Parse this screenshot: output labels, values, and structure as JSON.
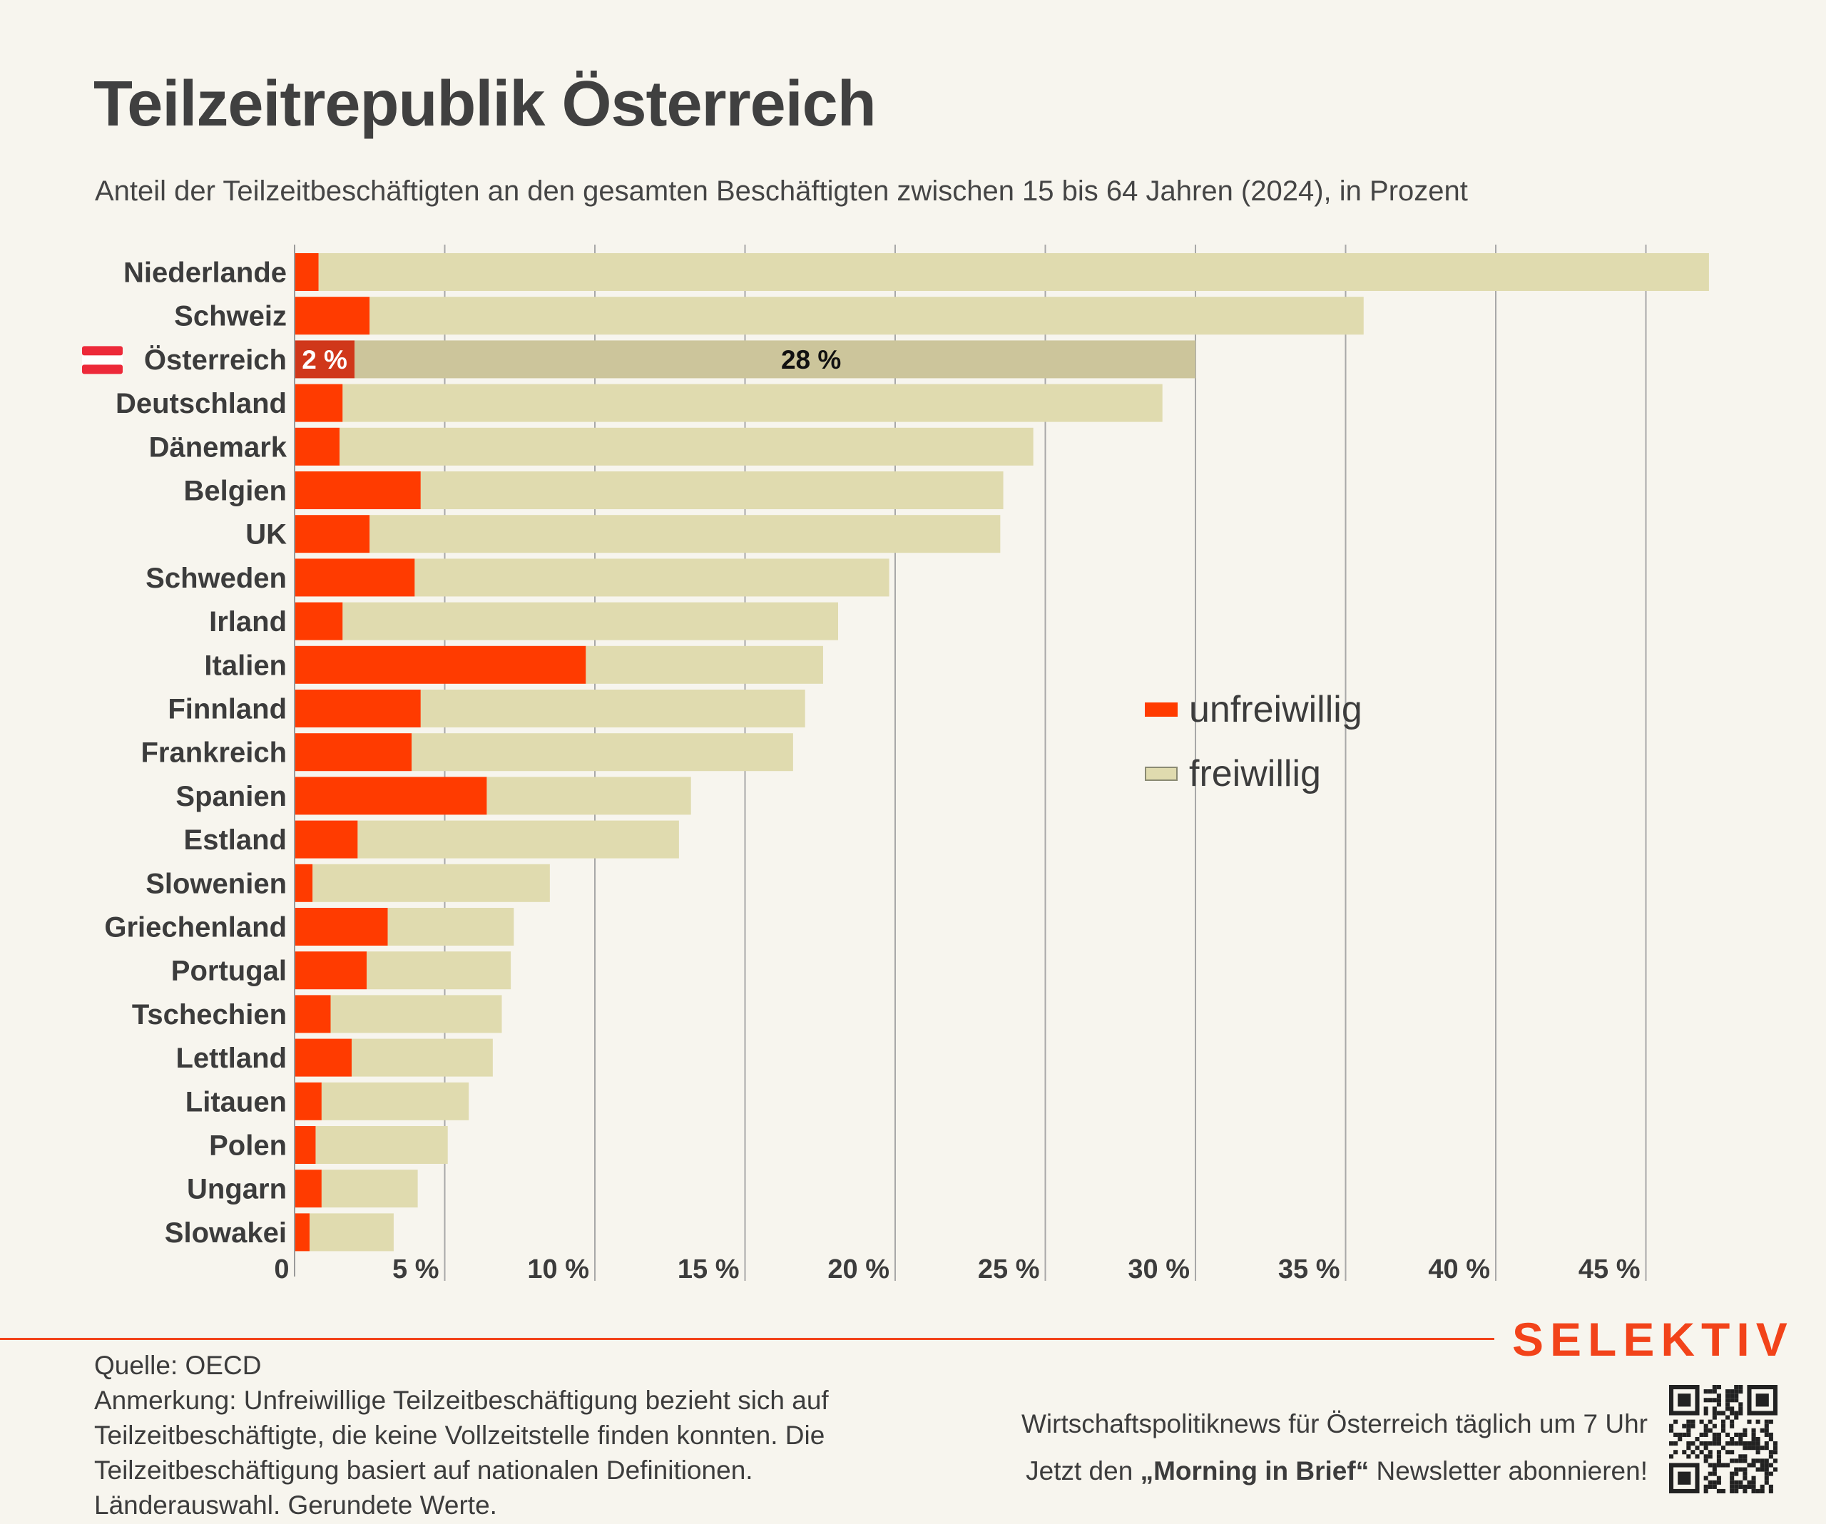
{
  "title": "Teilzeitrepublik Österreich",
  "subtitle": "Anteil der Teilzeitbeschäftigten an den gesamten Beschäftigten zwischen 15 bis 64 Jahren (2024), in Prozent",
  "legend": {
    "involuntary": "unfreiwillig",
    "voluntary": "freiwillig"
  },
  "colors": {
    "involuntary": "#ff3b00",
    "voluntary": "#e0dbaf",
    "highlight_involuntary": "#d0371a",
    "highlight_voluntary": "#ccc59b",
    "background": "#f7f5ee",
    "brand": "#f2431a",
    "grid": "#a8a8a8"
  },
  "chart_data": {
    "type": "bar",
    "orientation": "horizontal",
    "stacked": true,
    "categories": [
      "Niederlande",
      "Schweiz",
      "Österreich",
      "Deutschland",
      "Dänemark",
      "Belgien",
      "UK",
      "Schweden",
      "Irland",
      "Italien",
      "Finnland",
      "Frankreich",
      "Spanien",
      "Estland",
      "Slowenien",
      "Griechenland",
      "Portugal",
      "Tschechien",
      "Lettland",
      "Litauen",
      "Polen",
      "Ungarn",
      "Slowakei"
    ],
    "series": [
      {
        "name": "unfreiwillig",
        "values": [
          0.8,
          2.5,
          2,
          1.6,
          1.5,
          4.2,
          2.5,
          4,
          1.6,
          9.7,
          4.2,
          3.9,
          6.4,
          2.1,
          0.6,
          3.1,
          2.4,
          1.2,
          1.9,
          0.9,
          0.7,
          0.9,
          0.5
        ]
      },
      {
        "name": "freiwillig",
        "values": [
          46.3,
          33.1,
          28,
          27.3,
          23.1,
          19.4,
          21,
          15.8,
          16.5,
          7.9,
          12.8,
          12.7,
          6.8,
          10.7,
          7.9,
          4.2,
          4.8,
          5.7,
          4.7,
          4.9,
          4.4,
          3.2,
          2.8
        ]
      }
    ],
    "highlight": {
      "category": "Österreich",
      "flag": "austria-flag",
      "labels": [
        "2 %",
        "28 %"
      ]
    },
    "xlim": [
      0,
      47
    ],
    "ticks": [
      {
        "value": 0,
        "label": "0"
      },
      {
        "value": 5,
        "label": "5 %"
      },
      {
        "value": 10,
        "label": "10 %"
      },
      {
        "value": 15,
        "label": "15 %"
      },
      {
        "value": 20,
        "label": "20 %"
      },
      {
        "value": 25,
        "label": "25 %"
      },
      {
        "value": 30,
        "label": "30 %"
      },
      {
        "value": 35,
        "label": "35 %"
      },
      {
        "value": 40,
        "label": "40 %"
      },
      {
        "value": 45,
        "label": "45 %"
      }
    ],
    "grid": true,
    "legend_position": "right"
  },
  "footer": {
    "source": "Quelle: OECD",
    "note": "Anmerkung: Unfreiwillige Teilzeitbeschäftigung bezieht sich auf Teilzeitbeschäftigte, die keine Vollzeitstelle finden konnten. Die Teilzeitbeschäftigung basiert auf nationalen Definitionen. Länderauswahl. Gerundete Werte.",
    "brand": "SELEKTIV",
    "promo_line1": "Wirtschaftspolitiknews für Österreich täglich um 7 Uhr",
    "promo_line2_prefix": "Jetzt den ",
    "promo_line2_bold": "„Morning in Brief“",
    "promo_line2_suffix": " Newsletter abonnieren!"
  }
}
